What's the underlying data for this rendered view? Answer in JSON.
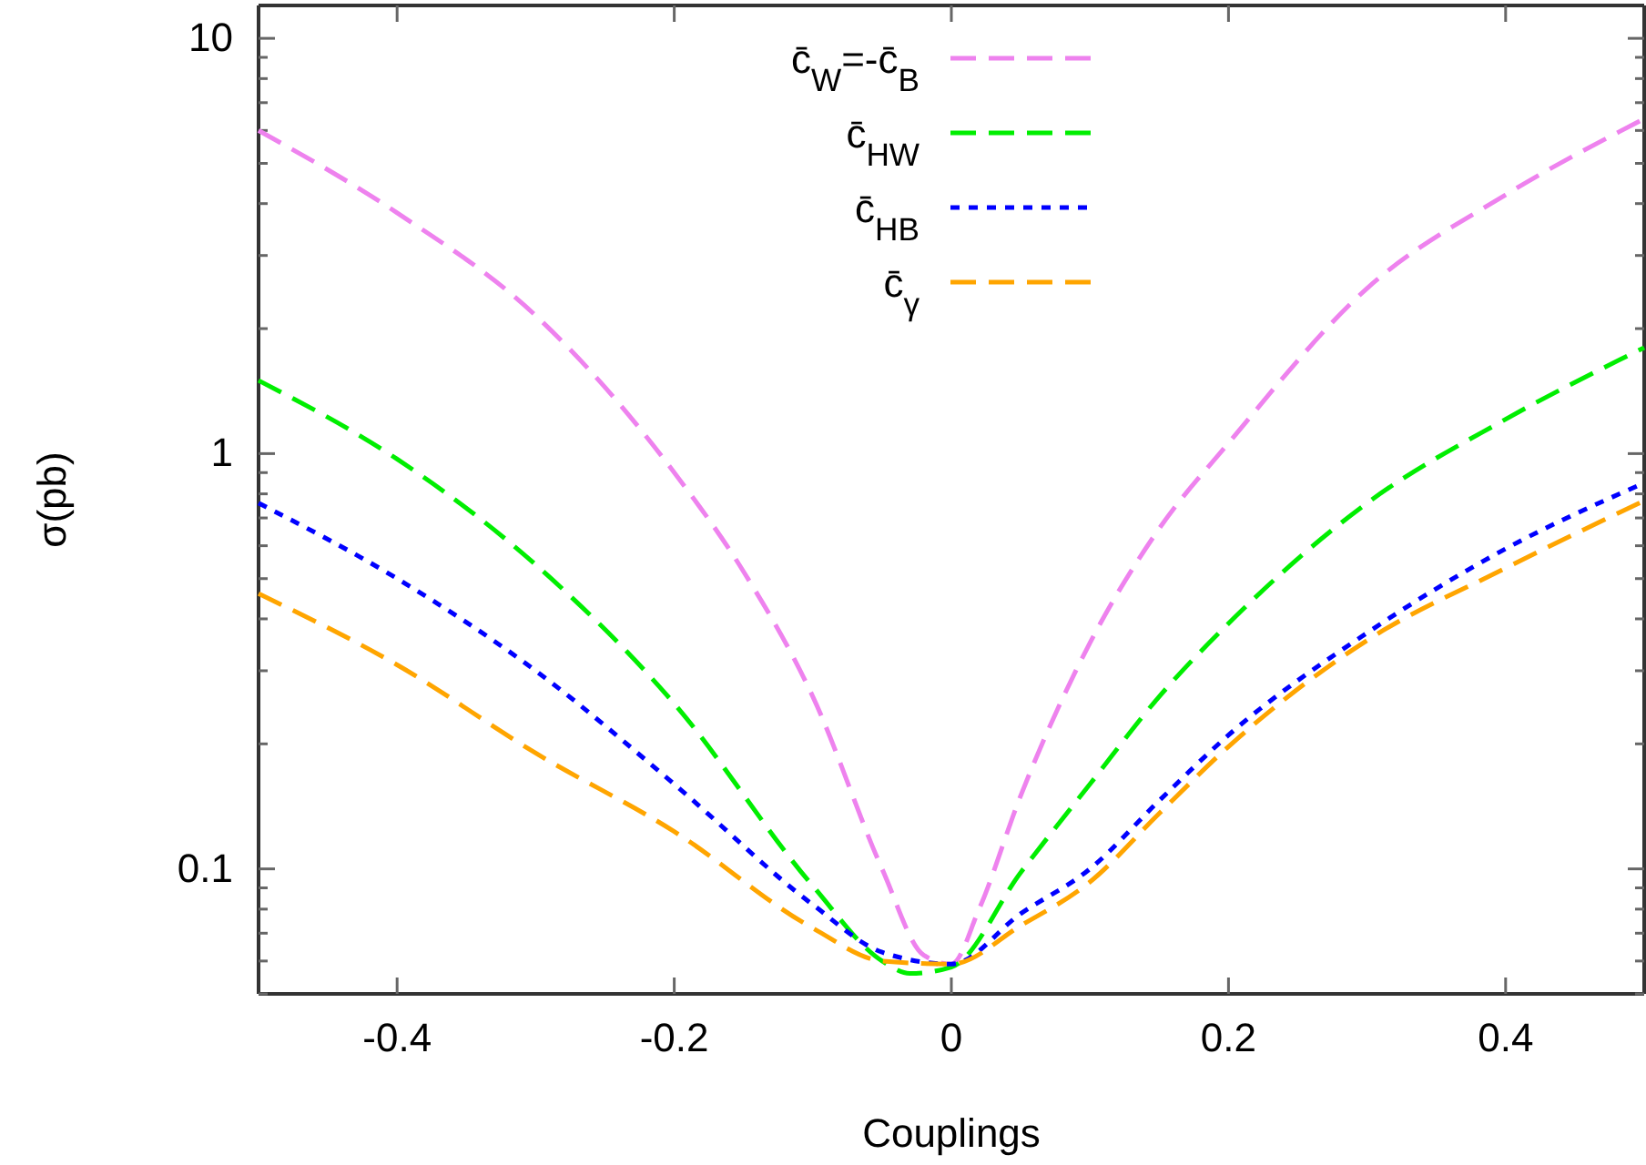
{
  "chart_data": {
    "type": "line",
    "xlabel": "Couplings",
    "ylabel": "σ(pb)",
    "log": "y",
    "xlim": [
      -0.5,
      0.5
    ],
    "xticks": [
      -0.4,
      -0.2,
      0,
      0.2,
      0.4
    ],
    "ylim": [
      0.05,
      12
    ],
    "yticks": [
      {
        "value": 0.05,
        "label": null
      },
      {
        "value": 0.06,
        "label": null
      },
      {
        "value": 0.07,
        "label": null
      },
      {
        "value": 0.08,
        "label": null
      },
      {
        "value": 0.09,
        "label": null
      },
      0.1,
      {
        "value": 0.2,
        "label": null
      },
      {
        "value": 0.3,
        "label": null
      },
      {
        "value": 0.4,
        "label": null
      },
      {
        "value": 0.5,
        "label": null
      },
      {
        "value": 0.6,
        "label": null
      },
      {
        "value": 0.7,
        "label": null
      },
      {
        "value": 0.8,
        "label": null
      },
      {
        "value": 0.9,
        "label": null
      },
      1,
      {
        "value": 2,
        "label": null
      },
      {
        "value": 3,
        "label": null
      },
      {
        "value": 4,
        "label": null
      },
      {
        "value": 5,
        "label": null
      },
      {
        "value": 6,
        "label": null
      },
      {
        "value": 7,
        "label": null
      },
      {
        "value": 8,
        "label": null
      },
      {
        "value": 9,
        "label": null
      },
      10
    ],
    "grid": false,
    "legend": "top",
    "marker": "none",
    "series": [
      {
        "name": "c̄$_{W}$=-c̄$_{B}$",
        "color": "#ee82ee",
        "line_style": "dashed",
        "x": [
          -0.5,
          -0.4,
          -0.3,
          -0.2,
          -0.15,
          -0.1,
          -0.05,
          -0.02,
          0,
          0.02,
          0.05,
          0.1,
          0.15,
          0.2,
          0.3,
          0.4,
          0.5
        ],
        "values": [
          6.0,
          3.8,
          2.15,
          0.9,
          0.52,
          0.26,
          0.1,
          0.062,
          0.059,
          0.08,
          0.15,
          0.35,
          0.66,
          1.06,
          2.5,
          4.2,
          6.4
        ]
      },
      {
        "name": "c̄$_{HW}$",
        "color": "#00ee00",
        "line_style": "dashed",
        "x": [
          -0.5,
          -0.4,
          -0.3,
          -0.2,
          -0.1,
          -0.05,
          -0.03,
          0,
          0.05,
          0.1,
          0.15,
          0.2,
          0.3,
          0.4,
          0.5
        ],
        "values": [
          1.5,
          0.97,
          0.54,
          0.25,
          0.091,
          0.06,
          0.056,
          0.058,
          0.098,
          0.16,
          0.26,
          0.39,
          0.76,
          1.21,
          1.8
        ]
      },
      {
        "name": "c̄$_{HB}$",
        "color": "#0000ff",
        "line_style": "dotted",
        "x": [
          -0.5,
          -0.4,
          -0.3,
          -0.2,
          -0.1,
          -0.05,
          0,
          0.05,
          0.1,
          0.15,
          0.2,
          0.3,
          0.4,
          0.5
        ],
        "values": [
          0.76,
          0.5,
          0.3,
          0.16,
          0.082,
          0.063,
          0.059,
          0.078,
          0.1,
          0.146,
          0.21,
          0.37,
          0.59,
          0.85
        ]
      },
      {
        "name": "c̄$_{γ}$",
        "color": "#ffa500",
        "line_style": "dashed",
        "x": [
          -0.5,
          -0.4,
          -0.3,
          -0.2,
          -0.1,
          -0.05,
          0,
          0.05,
          0.1,
          0.15,
          0.2,
          0.3,
          0.4,
          0.5
        ],
        "values": [
          0.46,
          0.31,
          0.19,
          0.123,
          0.072,
          0.06,
          0.059,
          0.073,
          0.093,
          0.136,
          0.197,
          0.355,
          0.53,
          0.77
        ]
      }
    ]
  }
}
